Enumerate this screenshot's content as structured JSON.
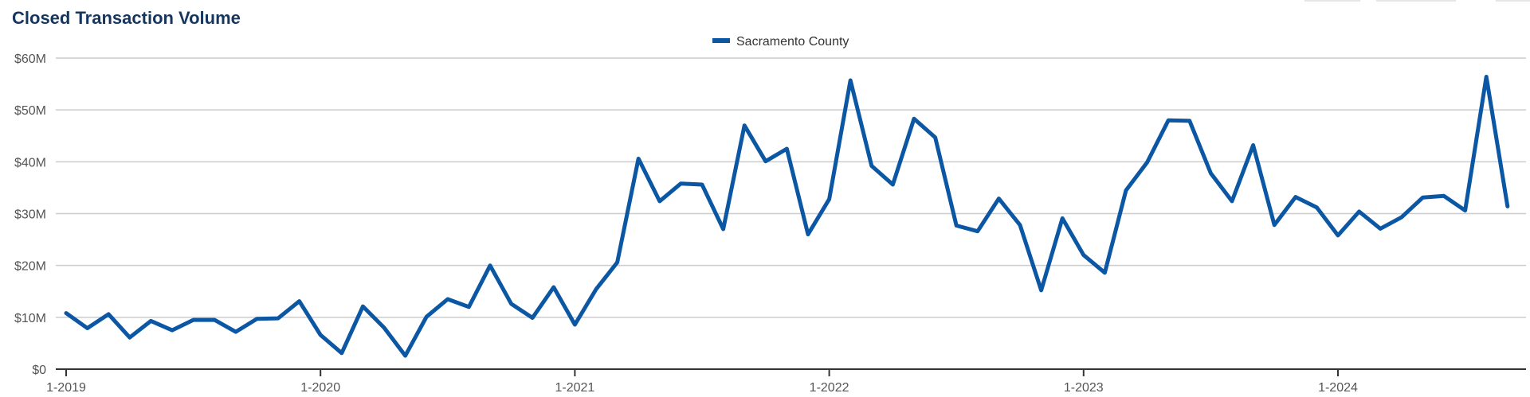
{
  "header": {
    "title": "Closed Transaction Volume"
  },
  "colors": {
    "series": "#0b57a4",
    "grid": "#cccccc",
    "axis": "#333333",
    "title": "#17365d"
  },
  "chart_data": {
    "type": "line",
    "title": "Closed Transaction Volume",
    "xlabel": "",
    "ylabel": "",
    "legend_position": "top-center",
    "grid": true,
    "ylim": [
      0,
      60
    ],
    "y_unit": "$M",
    "y_ticks": [
      "$0",
      "$10M",
      "$20M",
      "$30M",
      "$40M",
      "$50M",
      "$60M"
    ],
    "x_ticks": [
      "1-2019",
      "1-2020",
      "1-2021",
      "1-2022",
      "1-2023",
      "1-2024"
    ],
    "x": [
      "1-2019",
      "2-2019",
      "3-2019",
      "4-2019",
      "5-2019",
      "6-2019",
      "7-2019",
      "8-2019",
      "9-2019",
      "10-2019",
      "11-2019",
      "12-2019",
      "1-2020",
      "2-2020",
      "3-2020",
      "4-2020",
      "5-2020",
      "6-2020",
      "7-2020",
      "8-2020",
      "9-2020",
      "10-2020",
      "11-2020",
      "12-2020",
      "1-2021",
      "2-2021",
      "3-2021",
      "4-2021",
      "5-2021",
      "6-2021",
      "7-2021",
      "8-2021",
      "9-2021",
      "10-2021",
      "11-2021",
      "12-2021",
      "1-2022",
      "2-2022",
      "3-2022",
      "4-2022",
      "5-2022",
      "6-2022",
      "7-2022",
      "8-2022",
      "9-2022",
      "10-2022",
      "11-2022",
      "12-2022",
      "1-2023",
      "2-2023",
      "3-2023",
      "4-2023",
      "5-2023",
      "6-2023",
      "7-2023",
      "8-2023",
      "9-2023",
      "10-2023",
      "11-2023",
      "12-2023",
      "1-2024",
      "2-2024",
      "3-2024",
      "4-2024",
      "5-2024",
      "6-2024",
      "7-2024",
      "8-2024",
      "9-2024"
    ],
    "series": [
      {
        "name": "Sacramento County",
        "values": [
          10.8,
          7.9,
          10.6,
          6.1,
          9.3,
          7.5,
          9.5,
          9.5,
          7.2,
          9.7,
          9.8,
          13.1,
          6.6,
          3.1,
          12.1,
          8.0,
          2.6,
          10.1,
          13.5,
          12.0,
          20.0,
          12.6,
          9.9,
          15.8,
          8.6,
          15.4,
          20.6,
          40.6,
          32.4,
          35.8,
          35.6,
          27.0,
          47.0,
          40.1,
          42.5,
          26.0,
          32.8,
          55.7,
          39.2,
          35.6,
          48.3,
          44.7,
          27.7,
          26.6,
          32.9,
          27.8,
          15.2,
          29.1,
          22.0,
          18.6,
          34.5,
          39.9,
          48.0,
          47.9,
          37.8,
          32.4,
          43.2,
          27.8,
          33.2,
          31.2,
          25.8,
          30.4,
          27.1,
          29.3,
          33.1,
          33.4,
          30.6,
          56.4,
          31.4
        ]
      }
    ]
  }
}
